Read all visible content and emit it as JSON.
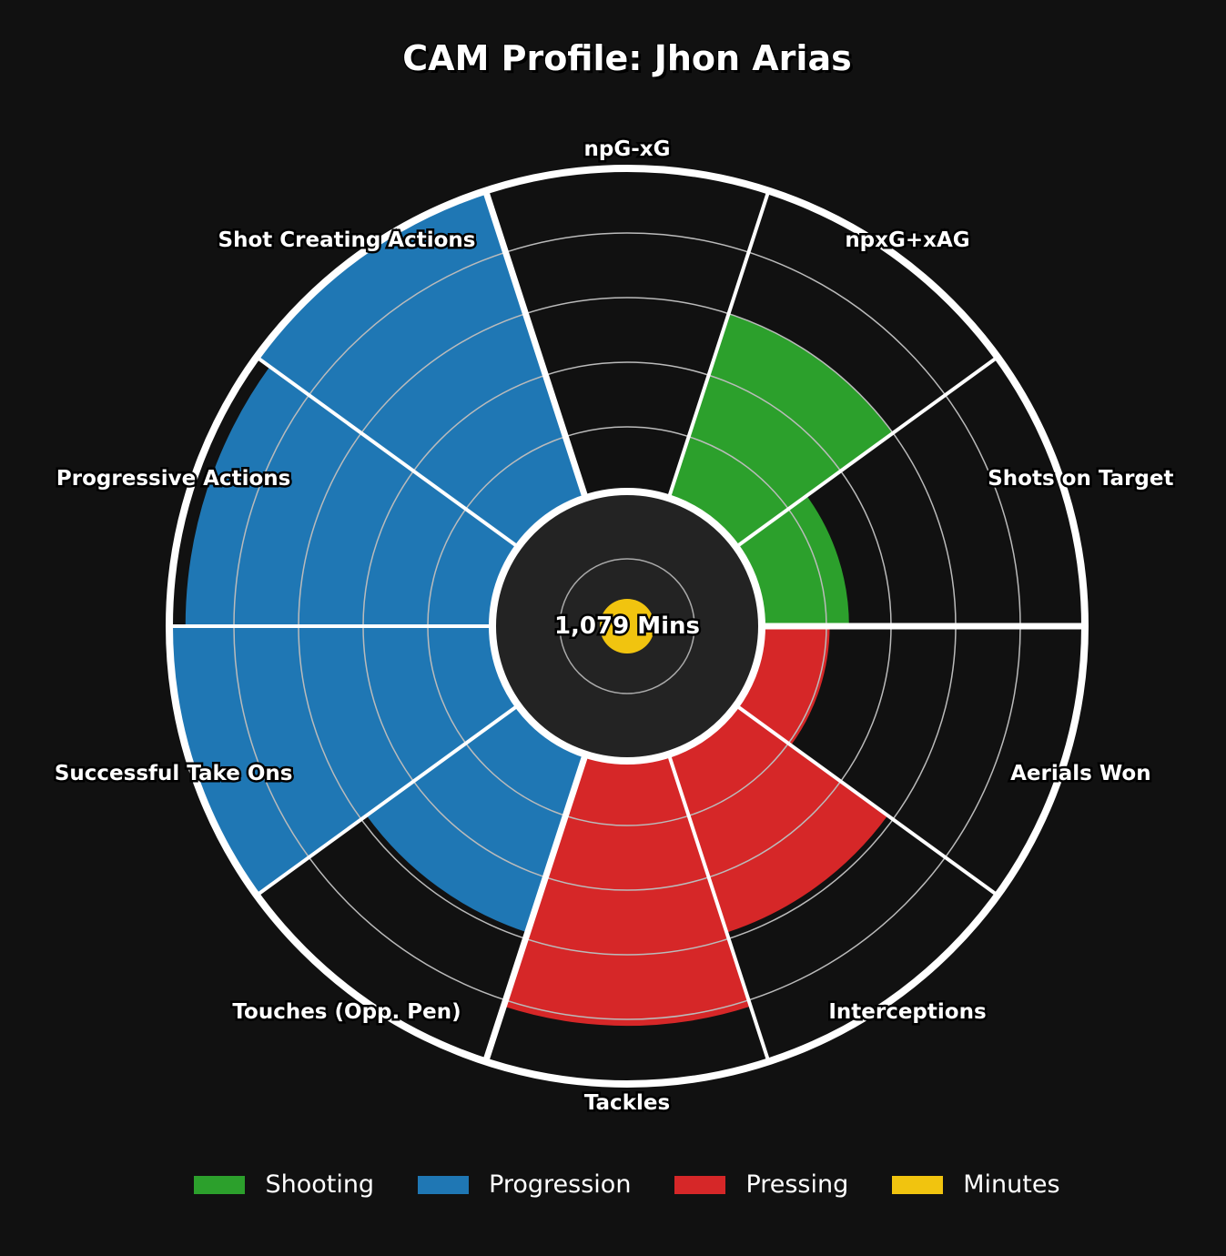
{
  "chart_data": {
    "type": "polar_bar",
    "title": "CAM Profile: Jhon Arias",
    "center_label": "1,079 Mins",
    "rlim": [
      0,
      100
    ],
    "grid": true,
    "legend_position": "bottom-center",
    "colors": {
      "Shooting": "#2ca02c",
      "Progression": "#1f77b4",
      "Pressing": "#d62728",
      "Minutes": "#f1c40f"
    },
    "categories": [
      "Shots on Target",
      "npxG+xAG",
      "npG-xG",
      "Shot Creating Actions",
      "Progressive Actions",
      "Successful Take Ons",
      "Touches (Opp. Pen)",
      "Tackles",
      "Interceptions",
      "Aerials Won"
    ],
    "values": [
      27,
      60,
      0,
      99,
      95,
      100,
      58,
      82,
      58,
      21
    ],
    "groups": [
      "Shooting",
      "Shooting",
      "Shooting",
      "Progression",
      "Progression",
      "Progression",
      "Progression",
      "Pressing",
      "Pressing",
      "Pressing"
    ],
    "legend": [
      "Shooting",
      "Progression",
      "Pressing",
      "Minutes"
    ]
  }
}
